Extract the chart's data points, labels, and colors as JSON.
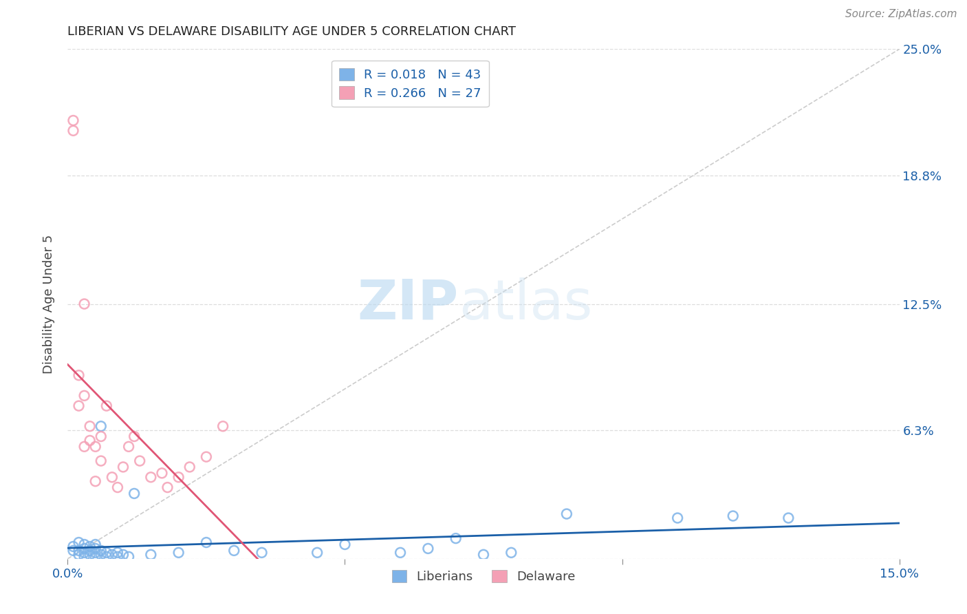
{
  "title": "LIBERIAN VS DELAWARE DISABILITY AGE UNDER 5 CORRELATION CHART",
  "source": "Source: ZipAtlas.com",
  "ylabel": "Disability Age Under 5",
  "xlim": [
    0.0,
    0.15
  ],
  "ylim": [
    0.0,
    0.25
  ],
  "xtick_positions": [
    0.0,
    0.05,
    0.1,
    0.15
  ],
  "xticklabels": [
    "0.0%",
    "",
    "",
    "15.0%"
  ],
  "ytick_positions": [
    0.0,
    0.063,
    0.125,
    0.188,
    0.25
  ],
  "ytick_labels": [
    "",
    "6.3%",
    "12.5%",
    "18.8%",
    "25.0%"
  ],
  "liberian_R": 0.018,
  "liberian_N": 43,
  "delaware_R": 0.266,
  "delaware_N": 27,
  "liberian_color": "#7eb3e8",
  "delaware_color": "#f4a0b5",
  "liberian_line_color": "#1a5fa8",
  "delaware_line_color": "#e05575",
  "diagonal_color": "#cccccc",
  "liberian_x": [
    0.001,
    0.001,
    0.002,
    0.002,
    0.002,
    0.003,
    0.003,
    0.003,
    0.003,
    0.004,
    0.004,
    0.004,
    0.005,
    0.005,
    0.005,
    0.005,
    0.006,
    0.006,
    0.006,
    0.007,
    0.007,
    0.008,
    0.009,
    0.009,
    0.01,
    0.011,
    0.012,
    0.015,
    0.02,
    0.025,
    0.03,
    0.035,
    0.045,
    0.05,
    0.06,
    0.065,
    0.07,
    0.075,
    0.08,
    0.09,
    0.11,
    0.12,
    0.13
  ],
  "liberian_y": [
    0.004,
    0.006,
    0.002,
    0.004,
    0.008,
    0.001,
    0.003,
    0.005,
    0.007,
    0.002,
    0.004,
    0.006,
    0.001,
    0.003,
    0.005,
    0.007,
    0.002,
    0.004,
    0.065,
    0.001,
    0.003,
    0.002,
    0.001,
    0.003,
    0.002,
    0.001,
    0.032,
    0.002,
    0.003,
    0.008,
    0.004,
    0.003,
    0.003,
    0.007,
    0.003,
    0.005,
    0.01,
    0.002,
    0.003,
    0.022,
    0.02,
    0.021,
    0.02
  ],
  "delaware_x": [
    0.001,
    0.001,
    0.002,
    0.002,
    0.003,
    0.003,
    0.003,
    0.004,
    0.004,
    0.005,
    0.005,
    0.006,
    0.006,
    0.007,
    0.008,
    0.009,
    0.01,
    0.011,
    0.012,
    0.013,
    0.015,
    0.017,
    0.018,
    0.02,
    0.022,
    0.025,
    0.028
  ],
  "delaware_y": [
    0.215,
    0.21,
    0.09,
    0.075,
    0.125,
    0.08,
    0.055,
    0.065,
    0.058,
    0.055,
    0.038,
    0.048,
    0.06,
    0.075,
    0.04,
    0.035,
    0.045,
    0.055,
    0.06,
    0.048,
    0.04,
    0.042,
    0.035,
    0.04,
    0.045,
    0.05,
    0.065
  ],
  "watermark_zip": "ZIP",
  "watermark_atlas": "atlas",
  "background_color": "#ffffff",
  "grid_color": "#dddddd",
  "legend_r_color": "#1a5fa8",
  "legend_n_color": "#1a5fa8",
  "title_fontsize": 13,
  "source_fontsize": 11,
  "tick_fontsize": 13,
  "ylabel_fontsize": 13
}
